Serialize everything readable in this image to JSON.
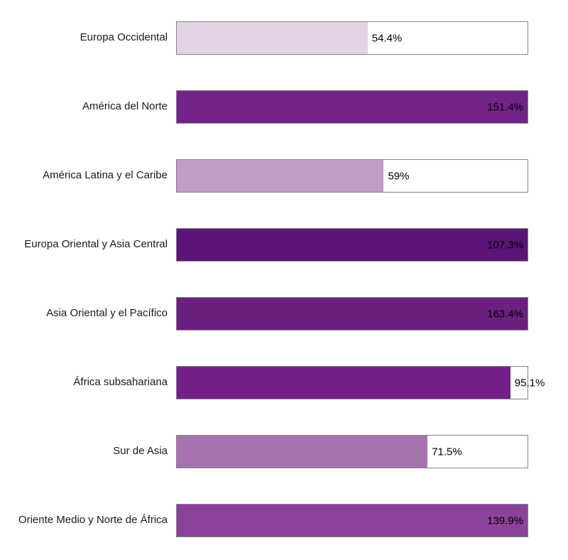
{
  "chart_data": {
    "type": "bar",
    "orientation": "horizontal",
    "title": "",
    "xlabel": "",
    "ylabel": "",
    "axis_max_percent": 100,
    "grid": false,
    "legend": false,
    "value_unit": "%",
    "categories": [
      "Europa Occidental",
      "América del Norte",
      "América Latina y el Caribe",
      "Europa Oriental y Asia Central",
      "Asia Oriental y el Pacífico",
      "África subsahariana",
      "Sur de Asia",
      "Oriente Medio y Norte de África"
    ],
    "values": [
      54.4,
      151.4,
      59,
      107.3,
      163.4,
      95.1,
      71.5,
      139.9
    ],
    "value_labels": [
      "54.4%",
      "151.4%",
      "59%",
      "107.3%",
      "163.4%",
      "95.1%",
      "71.5%",
      "139.9%"
    ],
    "bar_colors": [
      "#e3d2e5",
      "#722387",
      "#c19cc7",
      "#5b1478",
      "#6b2080",
      "#732189",
      "#a871b0",
      "#8b4299"
    ],
    "track_background": "#ffffff",
    "track_border_color": "#848484",
    "category_label_color": "#1a1a1a",
    "value_label_color": "#000000"
  }
}
